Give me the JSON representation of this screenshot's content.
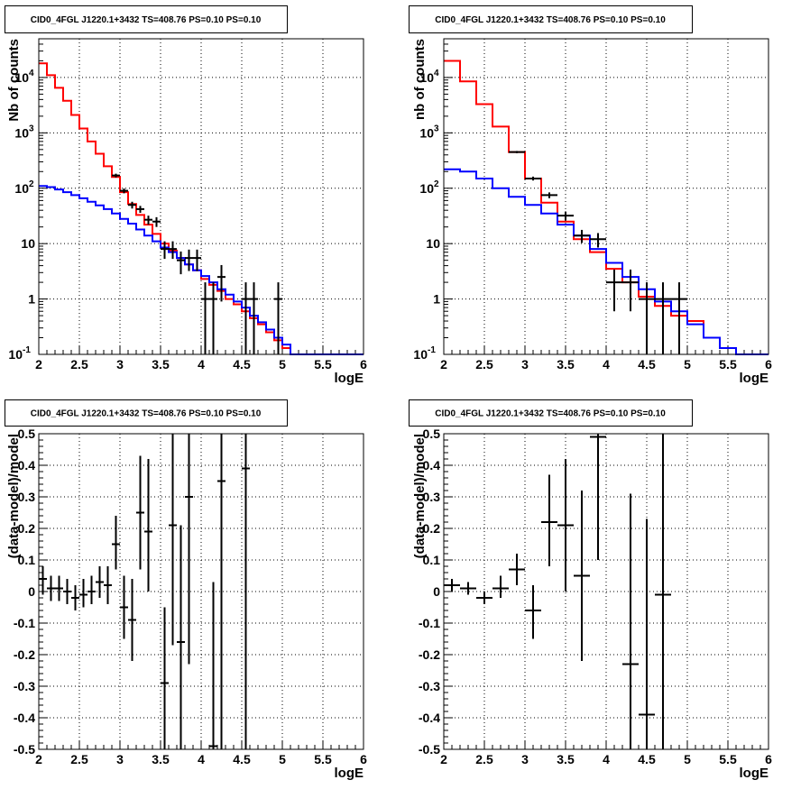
{
  "chart_data": [
    {
      "id": "counts_left",
      "type": "histogram",
      "title": "CID0_4FGL J1220.1+3432 TS=408.76 PS=0.10 PS=0.10",
      "xlabel": "logE",
      "ylabel": "Nb of counts",
      "xlim": [
        2,
        6
      ],
      "ylim": [
        0.1,
        50000
      ],
      "yscale": "log",
      "grid": true,
      "xticks": [
        "2",
        "2.5",
        "3",
        "3.5",
        "4",
        "4.5",
        "5",
        "5.5",
        "6"
      ],
      "yticks": [
        {
          "v": 0.1,
          "label": "10",
          "sup": "-1"
        },
        {
          "v": 1,
          "label": "1",
          "sup": ""
        },
        {
          "v": 10,
          "label": "10",
          "sup": ""
        },
        {
          "v": 100,
          "label": "10",
          "sup": "2"
        },
        {
          "v": 1000,
          "label": "10",
          "sup": "3"
        },
        {
          "v": 10000,
          "label": "10",
          "sup": "4"
        }
      ],
      "series": [
        {
          "kind": "step",
          "color": "#ff0000",
          "edges_start": 2.0,
          "bin_width": 0.1,
          "values": [
            18000,
            11000,
            6500,
            3800,
            2100,
            1200,
            700,
            420,
            250,
            160,
            85,
            52,
            33,
            22,
            15,
            10,
            7.5,
            5.5,
            4.2,
            3.3,
            2.3,
            1.8,
            1.4,
            1.0,
            0.8,
            0.6,
            0.45,
            0.35,
            0.25,
            0.18,
            0.13,
            0.1,
            0.1,
            0.1,
            0.1,
            0.1,
            0.1,
            0.1,
            0.1,
            0.1
          ]
        },
        {
          "kind": "step",
          "color": "#0000ff",
          "edges_start": 2.0,
          "bin_width": 0.1,
          "values": [
            110,
            105,
            95,
            85,
            75,
            66,
            57,
            49,
            42,
            35,
            28,
            23,
            18,
            14,
            11,
            8.5,
            7.0,
            5.5,
            4.2,
            3.3,
            2.6,
            2.0,
            1.5,
            1.2,
            0.9,
            0.7,
            0.5,
            0.38,
            0.28,
            0.2,
            0.15,
            0.1,
            0.1,
            0.1,
            0.1,
            0.1,
            0.1,
            0.1,
            0.1,
            0.1
          ]
        },
        {
          "kind": "points",
          "color": "#000000",
          "half_width": 0.05,
          "points": [
            {
              "x": 2.95,
              "y": 170,
              "lo": 157,
              "hi": 183
            },
            {
              "x": 3.05,
              "y": 90,
              "lo": 81,
              "hi": 99
            },
            {
              "x": 3.15,
              "y": 50,
              "lo": 43,
              "hi": 57
            },
            {
              "x": 3.25,
              "y": 42,
              "lo": 36,
              "hi": 48
            },
            {
              "x": 3.35,
              "y": 27,
              "lo": 22,
              "hi": 32
            },
            {
              "x": 3.45,
              "y": 25,
              "lo": 20,
              "hi": 30
            },
            {
              "x": 3.55,
              "y": 8,
              "lo": 5.3,
              "hi": 11
            },
            {
              "x": 3.65,
              "y": 8,
              "lo": 5.3,
              "hi": 11
            },
            {
              "x": 3.75,
              "y": 5,
              "lo": 2.8,
              "hi": 7.2
            },
            {
              "x": 3.85,
              "y": 5.5,
              "lo": 3.2,
              "hi": 7.8
            },
            {
              "x": 3.95,
              "y": 5.5,
              "lo": 3.2,
              "hi": 7.8
            },
            {
              "x": 4.05,
              "y": 1,
              "lo": 0.1,
              "hi": 2
            },
            {
              "x": 4.15,
              "y": 1,
              "lo": 0.1,
              "hi": 2
            },
            {
              "x": 4.25,
              "y": 2.5,
              "lo": 0.9,
              "hi": 4.1
            },
            {
              "x": 4.55,
              "y": 1,
              "lo": 0.1,
              "hi": 2
            },
            {
              "x": 4.65,
              "y": 1,
              "lo": 0.1,
              "hi": 2
            },
            {
              "x": 4.95,
              "y": 1,
              "lo": 0.1,
              "hi": 2
            }
          ]
        }
      ]
    },
    {
      "id": "counts_right",
      "type": "histogram",
      "title": "CID0_4FGL J1220.1+3432 TS=408.76 PS=0.10 PS=0.10",
      "xlabel": "logE",
      "ylabel": "nb of counts",
      "xlim": [
        2,
        6
      ],
      "ylim": [
        0.1,
        50000
      ],
      "yscale": "log",
      "grid": true,
      "xticks": [
        "2",
        "2.5",
        "3",
        "3.5",
        "4",
        "4.5",
        "5",
        "5.5",
        "6"
      ],
      "yticks": [
        {
          "v": 0.1,
          "label": "10",
          "sup": "-1"
        },
        {
          "v": 1,
          "label": "1",
          "sup": ""
        },
        {
          "v": 10,
          "label": "10",
          "sup": ""
        },
        {
          "v": 100,
          "label": "10",
          "sup": "2"
        },
        {
          "v": 1000,
          "label": "10",
          "sup": "3"
        },
        {
          "v": 10000,
          "label": "10",
          "sup": "4"
        }
      ],
      "series": [
        {
          "kind": "step",
          "color": "#ff0000",
          "edges_start": 2.0,
          "bin_width": 0.2,
          "values": [
            20000,
            8500,
            3300,
            1300,
            450,
            150,
            55,
            25,
            12,
            7,
            3.5,
            2,
            1.1,
            0.75,
            0.5,
            0.4,
            0.2,
            0.13,
            0.1,
            0.1
          ]
        },
        {
          "kind": "step",
          "color": "#0000ff",
          "edges_start": 2.0,
          "bin_width": 0.2,
          "values": [
            220,
            200,
            150,
            100,
            70,
            50,
            35,
            22,
            14,
            8,
            4.5,
            2.5,
            1.5,
            0.9,
            0.6,
            0.35,
            0.2,
            0.13,
            0.1,
            0.1
          ]
        },
        {
          "kind": "points",
          "color": "#000000",
          "half_width": 0.1,
          "points": [
            {
              "x": 2.9,
              "y": 450,
              "lo": 430,
              "hi": 471
            },
            {
              "x": 3.1,
              "y": 150,
              "lo": 138,
              "hi": 162
            },
            {
              "x": 3.3,
              "y": 75,
              "lo": 66,
              "hi": 84
            },
            {
              "x": 3.5,
              "y": 32,
              "lo": 26,
              "hi": 38
            },
            {
              "x": 3.7,
              "y": 14,
              "lo": 10.3,
              "hi": 17.7
            },
            {
              "x": 3.9,
              "y": 12,
              "lo": 8.5,
              "hi": 15.5
            },
            {
              "x": 4.1,
              "y": 2,
              "lo": 0.6,
              "hi": 3.4
            },
            {
              "x": 4.3,
              "y": 2,
              "lo": 0.6,
              "hi": 3.4
            },
            {
              "x": 4.5,
              "y": 1,
              "lo": 0.1,
              "hi": 2
            },
            {
              "x": 4.7,
              "y": 1,
              "lo": 0.1,
              "hi": 2
            },
            {
              "x": 4.9,
              "y": 1,
              "lo": 0.1,
              "hi": 2
            }
          ]
        }
      ]
    },
    {
      "id": "resid_left",
      "type": "scatter",
      "title": "CID0_4FGL J1220.1+3432 TS=408.76 PS=0.10 PS=0.10",
      "xlabel": "logE",
      "ylabel": "(data-model)/model",
      "xlim": [
        2,
        6
      ],
      "ylim": [
        -0.5,
        0.5
      ],
      "yscale": "linear",
      "grid": true,
      "xticks": [
        "2",
        "2.5",
        "3",
        "3.5",
        "4",
        "4.5",
        "5",
        "5.5",
        "6"
      ],
      "yticks": [
        {
          "v": -0.5,
          "label": "-0.5"
        },
        {
          "v": -0.4,
          "label": "-0.4"
        },
        {
          "v": -0.3,
          "label": "-0.3"
        },
        {
          "v": -0.2,
          "label": "-0.2"
        },
        {
          "v": -0.1,
          "label": "-0.1"
        },
        {
          "v": 0,
          "label": "0"
        },
        {
          "v": 0.1,
          "label": "0.1"
        },
        {
          "v": 0.2,
          "label": "0.2"
        },
        {
          "v": 0.3,
          "label": "0.3"
        },
        {
          "v": 0.4,
          "label": "0.4"
        },
        {
          "v": 0.5,
          "label": "0.5"
        }
      ],
      "series": [
        {
          "kind": "points",
          "color": "#000000",
          "half_width": 0.05,
          "points": [
            {
              "x": 2.05,
              "y": 0.04,
              "lo": -0.01,
              "hi": 0.08
            },
            {
              "x": 2.15,
              "y": 0.01,
              "lo": -0.03,
              "hi": 0.05
            },
            {
              "x": 2.25,
              "y": 0.01,
              "lo": -0.03,
              "hi": 0.05
            },
            {
              "x": 2.35,
              "y": 0.0,
              "lo": -0.04,
              "hi": 0.04
            },
            {
              "x": 2.45,
              "y": -0.02,
              "lo": -0.06,
              "hi": 0.02
            },
            {
              "x": 2.55,
              "y": -0.01,
              "lo": -0.05,
              "hi": 0.04
            },
            {
              "x": 2.65,
              "y": 0.0,
              "lo": -0.04,
              "hi": 0.05
            },
            {
              "x": 2.75,
              "y": 0.03,
              "lo": -0.02,
              "hi": 0.08
            },
            {
              "x": 2.85,
              "y": 0.02,
              "lo": -0.04,
              "hi": 0.08
            },
            {
              "x": 2.95,
              "y": 0.15,
              "lo": 0.07,
              "hi": 0.24
            },
            {
              "x": 3.05,
              "y": -0.05,
              "lo": -0.15,
              "hi": 0.05
            },
            {
              "x": 3.15,
              "y": -0.09,
              "lo": -0.22,
              "hi": 0.04
            },
            {
              "x": 3.25,
              "y": 0.25,
              "lo": 0.07,
              "hi": 0.43
            },
            {
              "x": 3.35,
              "y": 0.19,
              "lo": 0.0,
              "hi": 0.42
            },
            {
              "x": 3.55,
              "y": -0.29,
              "lo": -0.5,
              "hi": -0.05
            },
            {
              "x": 3.65,
              "y": 0.21,
              "lo": -0.17,
              "hi": 0.5
            },
            {
              "x": 3.75,
              "y": -0.16,
              "lo": -0.5,
              "hi": 0.21
            },
            {
              "x": 3.85,
              "y": 0.3,
              "lo": -0.23,
              "hi": 0.5
            },
            {
              "x": 4.15,
              "y": -0.49,
              "lo": -0.5,
              "hi": 0.03
            },
            {
              "x": 4.25,
              "y": 0.35,
              "lo": -0.5,
              "hi": 0.5
            },
            {
              "x": 4.55,
              "y": 0.39,
              "lo": -0.5,
              "hi": 0.5
            }
          ]
        }
      ]
    },
    {
      "id": "resid_right",
      "type": "scatter",
      "title": "CID0_4FGL J1220.1+3432 TS=408.76 PS=0.10 PS=0.10",
      "xlabel": "logE",
      "ylabel": "(data-model)/model",
      "xlim": [
        2,
        6
      ],
      "ylim": [
        -0.5,
        0.5
      ],
      "yscale": "linear",
      "grid": true,
      "xticks": [
        "2",
        "2.5",
        "3",
        "3.5",
        "4",
        "4.5",
        "5",
        "5.5",
        "6"
      ],
      "yticks": [
        {
          "v": -0.5,
          "label": "-0.5"
        },
        {
          "v": -0.4,
          "label": "-0.4"
        },
        {
          "v": -0.3,
          "label": "-0.3"
        },
        {
          "v": -0.2,
          "label": "-0.2"
        },
        {
          "v": -0.1,
          "label": "-0.1"
        },
        {
          "v": 0,
          "label": "0"
        },
        {
          "v": 0.1,
          "label": "0.1"
        },
        {
          "v": 0.2,
          "label": "0.2"
        },
        {
          "v": 0.3,
          "label": "0.3"
        },
        {
          "v": 0.4,
          "label": "0.4"
        },
        {
          "v": 0.5,
          "label": "0.5"
        }
      ],
      "series": [
        {
          "kind": "points",
          "color": "#000000",
          "half_width": 0.1,
          "points": [
            {
              "x": 2.1,
              "y": 0.02,
              "lo": 0.0,
              "hi": 0.04
            },
            {
              "x": 2.3,
              "y": 0.01,
              "lo": -0.01,
              "hi": 0.03
            },
            {
              "x": 2.5,
              "y": -0.02,
              "lo": -0.04,
              "hi": 0.0
            },
            {
              "x": 2.7,
              "y": 0.01,
              "lo": -0.02,
              "hi": 0.05
            },
            {
              "x": 2.9,
              "y": 0.07,
              "lo": 0.02,
              "hi": 0.12
            },
            {
              "x": 3.1,
              "y": -0.06,
              "lo": -0.15,
              "hi": 0.02
            },
            {
              "x": 3.3,
              "y": 0.22,
              "lo": 0.08,
              "hi": 0.37
            },
            {
              "x": 3.5,
              "y": 0.21,
              "lo": 0.0,
              "hi": 0.42
            },
            {
              "x": 3.7,
              "y": 0.05,
              "lo": -0.22,
              "hi": 0.32
            },
            {
              "x": 3.9,
              "y": 0.49,
              "lo": 0.1,
              "hi": 0.5
            },
            {
              "x": 4.3,
              "y": -0.23,
              "lo": -0.5,
              "hi": 0.31
            },
            {
              "x": 4.5,
              "y": -0.39,
              "lo": -0.5,
              "hi": 0.23
            },
            {
              "x": 4.7,
              "y": -0.01,
              "lo": -0.5,
              "hi": 0.5
            }
          ]
        }
      ]
    }
  ]
}
